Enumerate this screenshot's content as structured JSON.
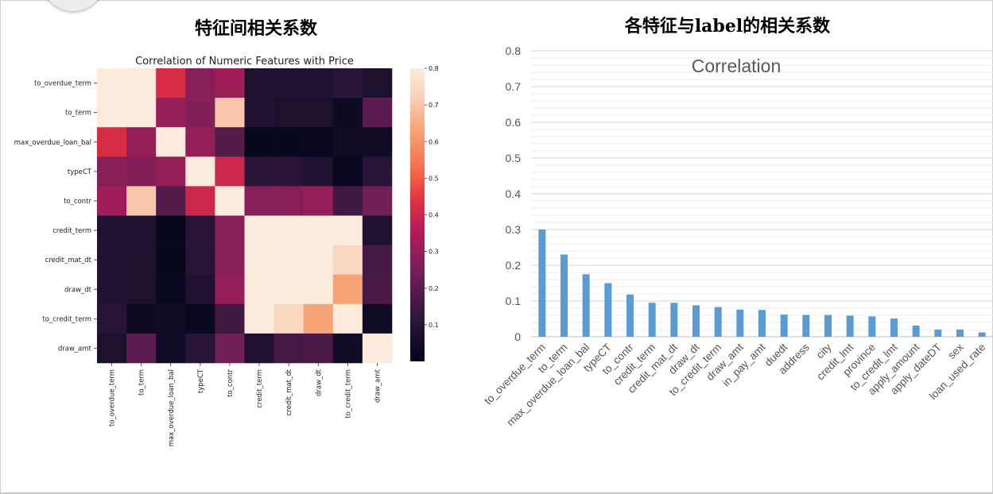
{
  "titles": {
    "left": "特征间相关系数",
    "right": "各特征与label的相关系数"
  },
  "chart_data": [
    {
      "type": "heatmap",
      "title": "Correlation of Numeric Features with Price",
      "rows": [
        "to_overdue_term",
        "to_term",
        "max_overdue_loan_bal",
        "typeCT",
        "to_contr",
        "credit_term",
        "credit_mat_dt",
        "draw_dt",
        "to_credit_term",
        "draw_amt"
      ],
      "cols": [
        "to_overdue_term",
        "to_term",
        "max_overdue_loan_bal",
        "typeCT",
        "to_contr",
        "credit_term",
        "credit_mat_dt",
        "draw_dt",
        "to_credit_term",
        "draw_amt"
      ],
      "values": [
        [
          1.0,
          1.0,
          0.42,
          0.28,
          0.32,
          0.08,
          0.08,
          0.08,
          0.1,
          0.07
        ],
        [
          1.0,
          1.0,
          0.3,
          0.27,
          0.7,
          0.08,
          0.07,
          0.07,
          0.03,
          0.2
        ],
        [
          0.42,
          0.3,
          1.0,
          0.3,
          0.19,
          0.01,
          0.01,
          0.02,
          0.04,
          0.04
        ],
        [
          0.28,
          0.27,
          0.3,
          1.0,
          0.4,
          0.1,
          0.1,
          0.08,
          0.02,
          0.1
        ],
        [
          0.32,
          0.7,
          0.19,
          0.4,
          1.0,
          0.28,
          0.28,
          0.3,
          0.15,
          0.24
        ],
        [
          0.08,
          0.08,
          0.01,
          0.1,
          0.28,
          1.0,
          1.0,
          1.0,
          0.8,
          0.08
        ],
        [
          0.08,
          0.07,
          0.01,
          0.1,
          0.28,
          1.0,
          1.0,
          1.0,
          0.74,
          0.16
        ],
        [
          0.08,
          0.07,
          0.02,
          0.08,
          0.3,
          1.0,
          1.0,
          1.0,
          0.63,
          0.17
        ],
        [
          0.1,
          0.03,
          0.04,
          0.02,
          0.15,
          0.8,
          0.74,
          0.63,
          1.0,
          0.04
        ],
        [
          0.07,
          0.2,
          0.04,
          0.1,
          0.24,
          0.08,
          0.16,
          0.17,
          0.04,
          1.0
        ]
      ],
      "colorbar": {
        "range": [
          0.0,
          0.8
        ],
        "ticks": [
          "0.1",
          "0.2",
          "0.3",
          "0.4",
          "0.5",
          "0.6",
          "0.7",
          "0.8"
        ]
      }
    },
    {
      "type": "bar",
      "title": "Correlation",
      "categories": [
        "to_overdue_term",
        "to_term",
        "max_overdue_loan_bal",
        "typeCT",
        "to_contr",
        "credit_term",
        "credit_mat_dt",
        "draw_dt",
        "to_credit_term",
        "draw_amt",
        "in_pay_amt",
        "duedt",
        "address",
        "city",
        "credit_lmt",
        "province",
        "to_credit_lmt",
        "apply_amount",
        "apply_dateDT",
        "sex",
        "loan_used_rate"
      ],
      "values": [
        0.3,
        0.23,
        0.175,
        0.15,
        0.118,
        0.095,
        0.095,
        0.088,
        0.083,
        0.076,
        0.075,
        0.062,
        0.061,
        0.061,
        0.059,
        0.057,
        0.051,
        0.031,
        0.02,
        0.02,
        0.012
      ],
      "ylim": [
        0,
        0.8
      ],
      "yticks": [
        "0",
        "0.1",
        "0.2",
        "0.3",
        "0.4",
        "0.5",
        "0.6",
        "0.7",
        "0.8"
      ],
      "bar_color": "#5b9bd5",
      "grid": true
    }
  ]
}
